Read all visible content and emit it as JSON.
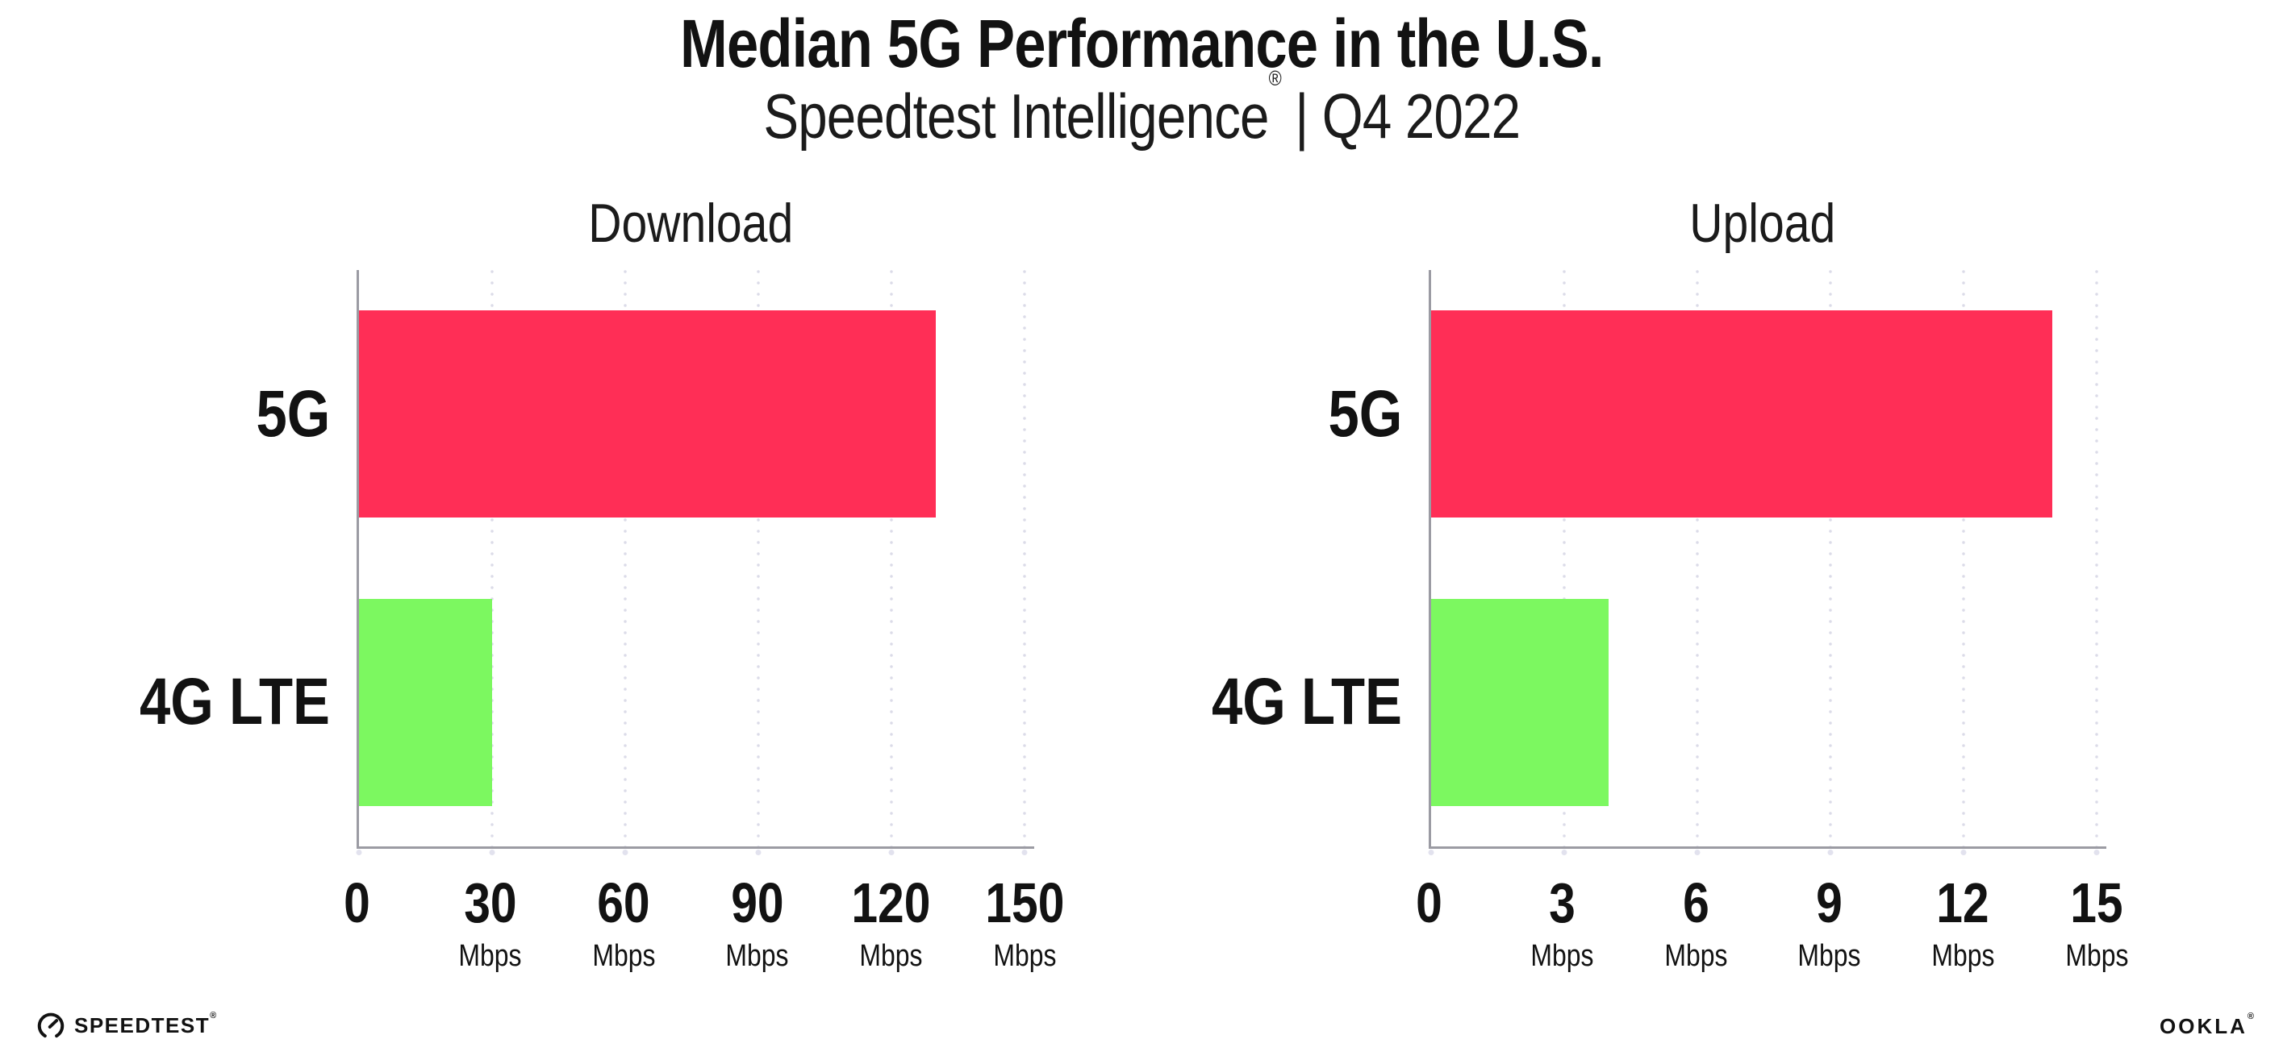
{
  "header": {
    "title": "Median 5G Performance in the U.S.",
    "subtitle_brand": "Speedtest Intelligence",
    "subtitle_registered": "®",
    "subtitle_rest": " | Q4 2022"
  },
  "colors": {
    "bar_5g": "#ff2e56",
    "bar_4g_lte": "#7cf860",
    "axis_line": "#9b9ba3",
    "gridline_dots": "#dbdbe8",
    "text": "#121212"
  },
  "chart_data": [
    {
      "type": "bar",
      "orientation": "horizontal",
      "title": "Download",
      "categories": [
        "5G",
        "4G LTE"
      ],
      "values": [
        130,
        30
      ],
      "unit": "Mbps",
      "xlim": [
        0,
        150
      ],
      "xticks": [
        0,
        30,
        60,
        90,
        120,
        150
      ],
      "tick_unit_label": "Mbps",
      "bar_colors": [
        "#ff2e56",
        "#7cf860"
      ],
      "grid": "vertical-dotted",
      "legend": "none"
    },
    {
      "type": "bar",
      "orientation": "horizontal",
      "title": "Upload",
      "categories": [
        "5G",
        "4G LTE"
      ],
      "values": [
        14,
        4
      ],
      "unit": "Mbps",
      "xlim": [
        0,
        15
      ],
      "xticks": [
        0,
        3,
        6,
        9,
        12,
        15
      ],
      "tick_unit_label": "Mbps",
      "bar_colors": [
        "#ff2e56",
        "#7cf860"
      ],
      "grid": "vertical-dotted",
      "legend": "none"
    }
  ],
  "footer": {
    "speedtest_label": "SPEEDTEST",
    "speedtest_mark": "®",
    "ookla_label": "OOKLA",
    "ookla_mark": "®"
  }
}
